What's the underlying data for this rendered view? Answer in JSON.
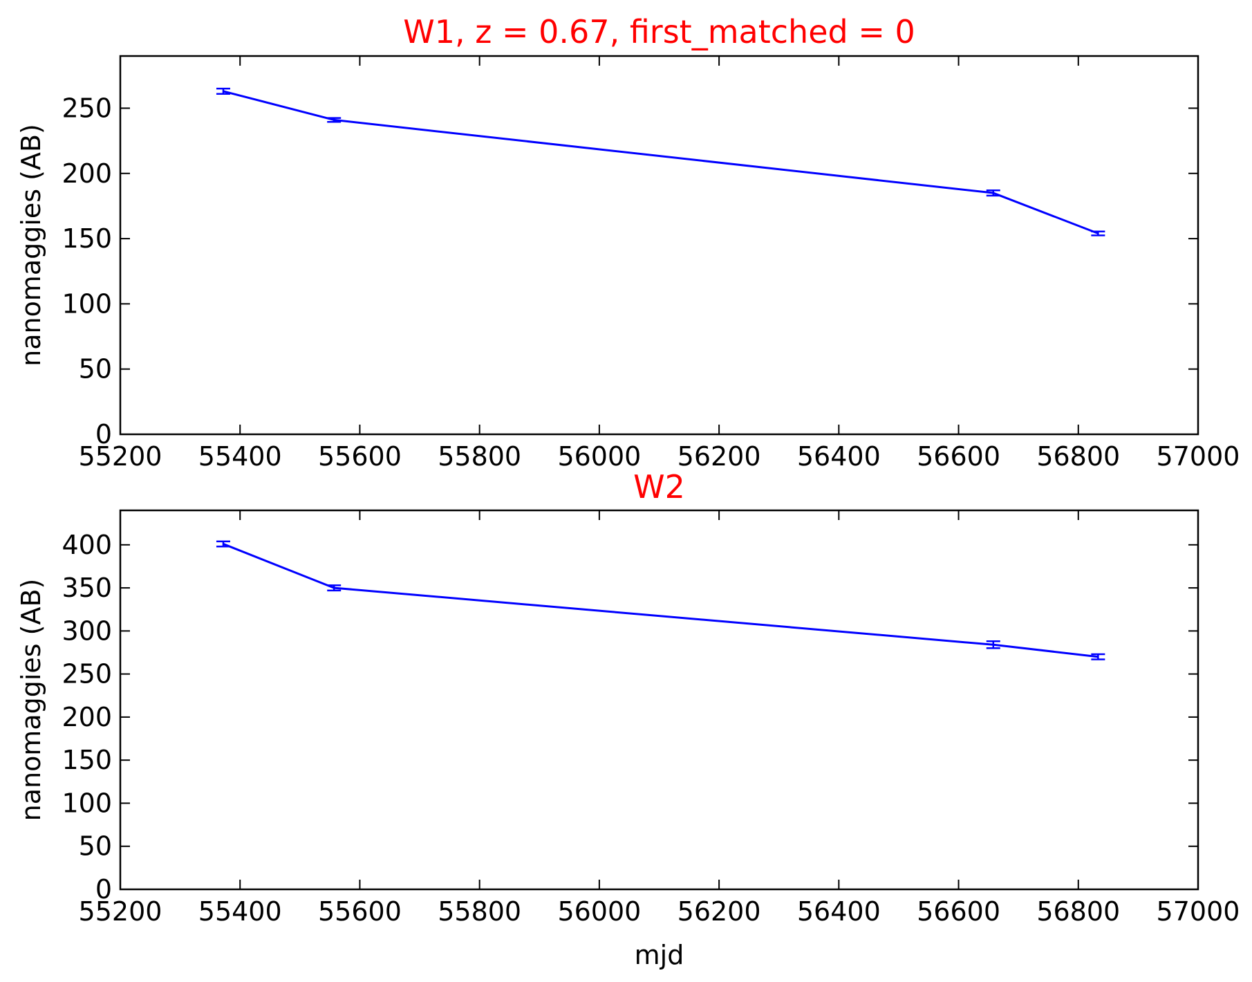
{
  "colors": {
    "series": "#0000ff",
    "title": "#ff0000",
    "axis": "#000000",
    "background": "#ffffff"
  },
  "chart_data": [
    {
      "type": "line",
      "title": "W1, z = 0.67, first_matched = 0",
      "xlabel": "",
      "ylabel": "nanomaggies (AB)",
      "xlim": [
        55200,
        57000
      ],
      "ylim": [
        0,
        290
      ],
      "xticks": [
        "55200",
        "55400",
        "55600",
        "55800",
        "56000",
        "56200",
        "56400",
        "56600",
        "56800",
        "57000"
      ],
      "yticks": [
        "0",
        "50",
        "100",
        "150",
        "200",
        "250"
      ],
      "grid": false,
      "error_bars": true,
      "series": [
        {
          "x": [
            55372,
            55557,
            56658,
            56833
          ],
          "y": [
            263,
            241,
            185,
            154
          ],
          "yerr": [
            2,
            1.5,
            2,
            1.5
          ]
        }
      ]
    },
    {
      "type": "line",
      "title": "W2",
      "xlabel": "mjd",
      "ylabel": "nanomaggies (AB)",
      "xlim": [
        55200,
        57000
      ],
      "ylim": [
        0,
        440
      ],
      "xticks": [
        "55200",
        "55400",
        "55600",
        "55800",
        "56000",
        "56200",
        "56400",
        "56600",
        "56800",
        "57000"
      ],
      "yticks": [
        "0",
        "50",
        "100",
        "150",
        "200",
        "250",
        "300",
        "350",
        "400"
      ],
      "grid": false,
      "error_bars": true,
      "series": [
        {
          "x": [
            55372,
            55557,
            56658,
            56833
          ],
          "y": [
            401,
            350,
            284,
            270
          ],
          "yerr": [
            3,
            3,
            4,
            3
          ]
        }
      ]
    }
  ]
}
